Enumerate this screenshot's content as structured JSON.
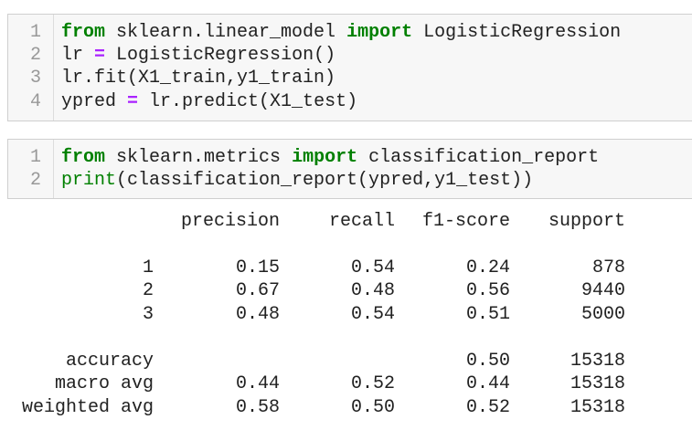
{
  "cells": [
    {
      "lines": [
        {
          "num": "1",
          "tokens": [
            {
              "text": "from",
              "cls": "kw"
            },
            {
              "text": " sklearn.linear_model ",
              "cls": ""
            },
            {
              "text": "import",
              "cls": "kw"
            },
            {
              "text": " LogisticRegression",
              "cls": ""
            }
          ]
        },
        {
          "num": "2",
          "tokens": [
            {
              "text": "lr ",
              "cls": ""
            },
            {
              "text": "=",
              "cls": "op"
            },
            {
              "text": " LogisticRegression()",
              "cls": ""
            }
          ]
        },
        {
          "num": "3",
          "tokens": [
            {
              "text": "lr.fit(X1_train,y1_train)",
              "cls": ""
            }
          ]
        },
        {
          "num": "4",
          "tokens": [
            {
              "text": "ypred ",
              "cls": ""
            },
            {
              "text": "=",
              "cls": "op"
            },
            {
              "text": " lr.predict(X1_test)",
              "cls": ""
            }
          ]
        }
      ]
    },
    {
      "lines": [
        {
          "num": "1",
          "tokens": [
            {
              "text": "from",
              "cls": "kw"
            },
            {
              "text": " sklearn.metrics ",
              "cls": ""
            },
            {
              "text": "import",
              "cls": "kw"
            },
            {
              "text": " classification_report",
              "cls": ""
            }
          ]
        },
        {
          "num": "2",
          "tokens": [
            {
              "text": "print",
              "cls": "fn"
            },
            {
              "text": "(classification_report(ypred,y1_test))",
              "cls": ""
            }
          ]
        }
      ]
    }
  ],
  "report": {
    "header": {
      "precision": "precision",
      "recall": "recall",
      "f1": "f1-score",
      "support": "support"
    },
    "rows": [
      {
        "label": "1",
        "precision": "0.15",
        "recall": "0.54",
        "f1": "0.24",
        "support": "878"
      },
      {
        "label": "2",
        "precision": "0.67",
        "recall": "0.48",
        "f1": "0.56",
        "support": "9440"
      },
      {
        "label": "3",
        "precision": "0.48",
        "recall": "0.54",
        "f1": "0.51",
        "support": "5000"
      },
      {
        "label": "accuracy",
        "precision": "",
        "recall": "",
        "f1": "0.50",
        "support": "15318"
      },
      {
        "label": "macro avg",
        "precision": "0.44",
        "recall": "0.52",
        "f1": "0.44",
        "support": "15318"
      },
      {
        "label": "weighted avg",
        "precision": "0.58",
        "recall": "0.50",
        "f1": "0.52",
        "support": "15318"
      }
    ]
  }
}
